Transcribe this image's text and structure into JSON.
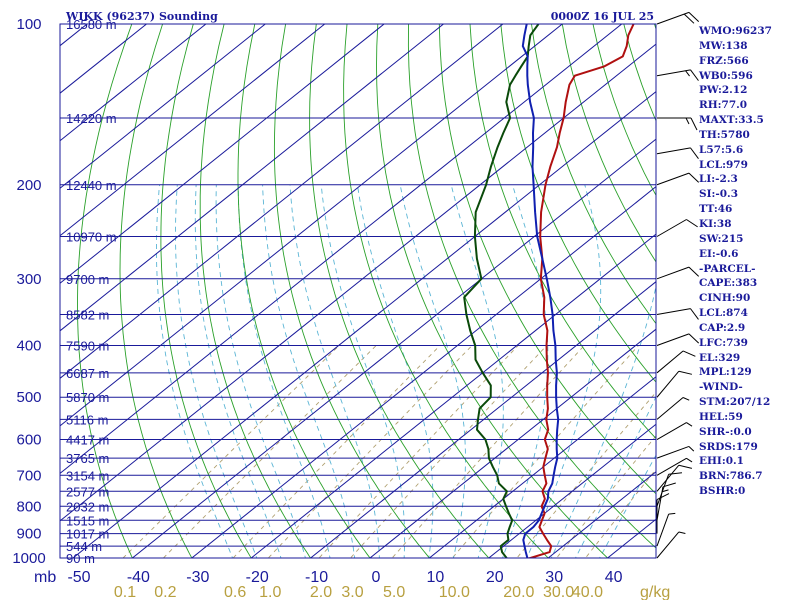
{
  "header": {
    "station": "WIKK (96237) Sounding",
    "time": "0000Z 16 JUL 25"
  },
  "colors": {
    "isobar": "#1a1a9a",
    "isotherm": "#1a1a9a",
    "dry_adiabat": "#2aa02a",
    "moist_adiabat": "#5bb5d5",
    "mixing_ratio": "#b0a070",
    "temperature": "#b01010",
    "dewpoint": "#0a4a0a",
    "parcel": "#1020b0",
    "wind": "#000000",
    "label": "#1a1a9a",
    "mixing_label": "#b8a040"
  },
  "chart_data": {
    "type": "skew-t",
    "title": "WIKK (96237) Sounding",
    "subtitle": "0000Z 16 JUL 25",
    "pressure_unit": "mb",
    "mixing_ratio_unit": "g/kg",
    "pressure_range": [
      1000,
      100
    ],
    "temperature_range": [
      -50,
      50
    ],
    "pressure_ticks": [
      100,
      200,
      300,
      400,
      500,
      600,
      700,
      800,
      900,
      1000
    ],
    "temperature_ticks": [
      -50,
      -40,
      -30,
      -20,
      -10,
      0,
      10,
      20,
      30,
      40
    ],
    "mixing_ratio_lines": [
      "0.1",
      "0.2",
      "0.6",
      "1.0",
      "2.0",
      "3.0",
      "5.0",
      "10.0",
      "20.0",
      "30.0",
      "40.0"
    ],
    "height_labels": [
      {
        "p": 100,
        "h": "16580 m"
      },
      {
        "p": 150,
        "h": "14220 m"
      },
      {
        "p": 200,
        "h": "12440 m"
      },
      {
        "p": 250,
        "h": "10970 m"
      },
      {
        "p": 300,
        "h": "9700 m"
      },
      {
        "p": 350,
        "h": "8582 m"
      },
      {
        "p": 400,
        "h": "7590 m"
      },
      {
        "p": 450,
        "h": "6687 m"
      },
      {
        "p": 500,
        "h": "5870 m"
      },
      {
        "p": 550,
        "h": "5116 m"
      },
      {
        "p": 600,
        "h": "4417 m"
      },
      {
        "p": 650,
        "h": "3765 m"
      },
      {
        "p": 700,
        "h": "3154 m"
      },
      {
        "p": 750,
        "h": "2577 m"
      },
      {
        "p": 800,
        "h": "2032 m"
      },
      {
        "p": 850,
        "h": "1515 m"
      },
      {
        "p": 900,
        "h": "1017 m"
      },
      {
        "p": 950,
        "h": "544 m"
      },
      {
        "p": 1000,
        "h": "90 m"
      }
    ],
    "series": [
      {
        "key": "temperature",
        "points": [
          [
            1008,
            26
          ],
          [
            1000,
            27
          ],
          [
            975,
            29
          ],
          [
            950,
            28
          ],
          [
            925,
            26
          ],
          [
            900,
            24
          ],
          [
            875,
            22
          ],
          [
            850,
            21
          ],
          [
            825,
            20
          ],
          [
            800,
            18
          ],
          [
            775,
            17
          ],
          [
            750,
            15
          ],
          [
            725,
            14
          ],
          [
            700,
            12
          ],
          [
            675,
            10
          ],
          [
            650,
            8.5
          ],
          [
            625,
            7
          ],
          [
            600,
            4.5
          ],
          [
            575,
            3
          ],
          [
            550,
            0.5
          ],
          [
            525,
            -1.5
          ],
          [
            500,
            -4
          ],
          [
            475,
            -6.5
          ],
          [
            450,
            -9
          ],
          [
            425,
            -12
          ],
          [
            400,
            -15
          ],
          [
            375,
            -18
          ],
          [
            350,
            -22
          ],
          [
            325,
            -25.5
          ],
          [
            300,
            -30
          ],
          [
            275,
            -34
          ],
          [
            250,
            -39
          ],
          [
            225,
            -44
          ],
          [
            200,
            -49
          ],
          [
            185,
            -52
          ],
          [
            170,
            -55
          ],
          [
            160,
            -57.5
          ],
          [
            150,
            -60
          ],
          [
            140,
            -63
          ],
          [
            130,
            -66
          ],
          [
            125,
            -67
          ],
          [
            120,
            -64
          ],
          [
            115,
            -63
          ],
          [
            110,
            -64.5
          ],
          [
            105,
            -66.5
          ],
          [
            100,
            -68
          ]
        ]
      },
      {
        "key": "dewpoint",
        "points": [
          [
            1008,
            23
          ],
          [
            1000,
            23
          ],
          [
            975,
            21
          ],
          [
            950,
            19.5
          ],
          [
            925,
            19.5
          ],
          [
            900,
            18
          ],
          [
            875,
            17
          ],
          [
            850,
            16
          ],
          [
            825,
            14
          ],
          [
            800,
            12
          ],
          [
            775,
            10
          ],
          [
            750,
            9
          ],
          [
            725,
            6
          ],
          [
            700,
            4
          ],
          [
            675,
            1.5
          ],
          [
            650,
            -1
          ],
          [
            625,
            -3
          ],
          [
            600,
            -5.5
          ],
          [
            575,
            -9
          ],
          [
            550,
            -11
          ],
          [
            525,
            -13
          ],
          [
            500,
            -13.5
          ],
          [
            475,
            -16
          ],
          [
            450,
            -20
          ],
          [
            425,
            -24
          ],
          [
            400,
            -27
          ],
          [
            375,
            -31
          ],
          [
            350,
            -35
          ],
          [
            325,
            -39
          ],
          [
            300,
            -40
          ],
          [
            275,
            -45
          ],
          [
            250,
            -50
          ],
          [
            225,
            -55
          ],
          [
            200,
            -59
          ],
          [
            185,
            -62
          ],
          [
            170,
            -65
          ],
          [
            160,
            -67
          ],
          [
            150,
            -69
          ],
          [
            140,
            -73
          ],
          [
            130,
            -76
          ],
          [
            125,
            -77
          ],
          [
            120,
            -78
          ],
          [
            115,
            -79
          ],
          [
            110,
            -81
          ],
          [
            105,
            -83
          ],
          [
            100,
            -84
          ]
        ]
      },
      {
        "key": "parcel",
        "points": [
          [
            1008,
            27.5
          ],
          [
            1000,
            26.5
          ],
          [
            975,
            25
          ],
          [
            950,
            23.5
          ],
          [
            925,
            22
          ],
          [
            900,
            21
          ],
          [
            875,
            21
          ],
          [
            850,
            20.5
          ],
          [
            825,
            19.5
          ],
          [
            800,
            18.5
          ],
          [
            775,
            17.5
          ],
          [
            750,
            16
          ],
          [
            725,
            15
          ],
          [
            700,
            13.5
          ],
          [
            675,
            12
          ],
          [
            650,
            10.5
          ],
          [
            625,
            8.5
          ],
          [
            600,
            6.5
          ],
          [
            575,
            4.5
          ],
          [
            550,
            2.5
          ],
          [
            525,
            0
          ],
          [
            500,
            -2.5
          ],
          [
            475,
            -5
          ],
          [
            450,
            -7.5
          ],
          [
            425,
            -10.5
          ],
          [
            400,
            -13.5
          ],
          [
            375,
            -17
          ],
          [
            350,
            -20.5
          ],
          [
            325,
            -24.5
          ],
          [
            300,
            -29
          ],
          [
            275,
            -34
          ],
          [
            250,
            -39.5
          ],
          [
            225,
            -45
          ],
          [
            200,
            -51
          ],
          [
            185,
            -55
          ],
          [
            170,
            -59
          ],
          [
            160,
            -62
          ],
          [
            150,
            -65
          ],
          [
            140,
            -69
          ],
          [
            130,
            -73
          ],
          [
            125,
            -75
          ],
          [
            120,
            -77
          ],
          [
            115,
            -79
          ],
          [
            110,
            -82
          ],
          [
            105,
            -84
          ],
          [
            100,
            -86
          ]
        ]
      }
    ],
    "wind_barbs": [
      {
        "p": 100,
        "dir": 250,
        "spd": 20
      },
      {
        "p": 125,
        "dir": 260,
        "spd": 15
      },
      {
        "p": 150,
        "dir": 270,
        "spd": 15
      },
      {
        "p": 175,
        "dir": 260,
        "spd": 10
      },
      {
        "p": 200,
        "dir": 250,
        "spd": 10
      },
      {
        "p": 250,
        "dir": 240,
        "spd": 10
      },
      {
        "p": 300,
        "dir": 250,
        "spd": 10
      },
      {
        "p": 350,
        "dir": 260,
        "spd": 10
      },
      {
        "p": 400,
        "dir": 250,
        "spd": 10
      },
      {
        "p": 450,
        "dir": 230,
        "spd": 10
      },
      {
        "p": 500,
        "dir": 220,
        "spd": 10
      },
      {
        "p": 550,
        "dir": 230,
        "spd": 5
      },
      {
        "p": 600,
        "dir": 240,
        "spd": 5
      },
      {
        "p": 650,
        "dir": 250,
        "spd": 5
      },
      {
        "p": 700,
        "dir": 240,
        "spd": 5
      },
      {
        "p": 750,
        "dir": 220,
        "spd": 10
      },
      {
        "p": 800,
        "dir": 200,
        "spd": 10
      },
      {
        "p": 850,
        "dir": 190,
        "spd": 15
      },
      {
        "p": 900,
        "dir": 180,
        "spd": 10
      },
      {
        "p": 950,
        "dir": 200,
        "spd": 5
      },
      {
        "p": 1000,
        "dir": 220,
        "spd": 5
      }
    ]
  },
  "indices": [
    "WMO:96237",
    "MW:138",
    "FRZ:566",
    "WB0:596",
    "PW:2.12",
    "RH:77.0",
    "MAXT:33.5",
    "TH:5780",
    "L57:5.6",
    "LCL:979",
    "LI:-2.3",
    "SI:-0.3",
    "TT:46",
    "KI:38",
    "SW:215",
    "EI:-0.6",
    "-PARCEL-",
    "CAPE:383",
    "CINH:90",
    "LCL:874",
    "CAP:2.9",
    "LFC:739",
    "EL:329",
    "MPL:129",
    "-WIND-",
    "STM:207/12",
    "HEL:59",
    "SHR-:0.0",
    "SRDS:179",
    "EHI:0.1",
    "BRN:786.7",
    "BSHR:0"
  ]
}
